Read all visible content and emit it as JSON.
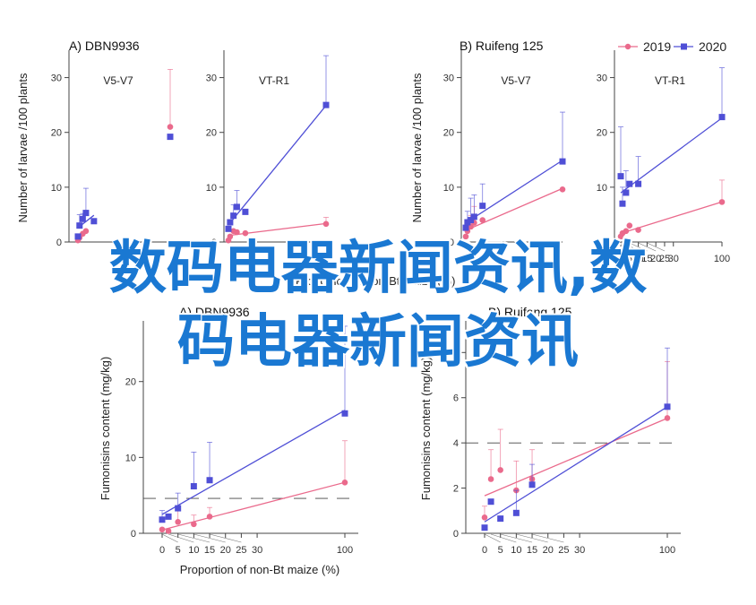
{
  "figure": {
    "legend": {
      "entries": [
        {
          "label": "2019",
          "color": "#ea6a8c",
          "marker": "circle"
        },
        {
          "label": "2020",
          "color": "#4f4fd6",
          "marker": "square"
        }
      ]
    },
    "watermark": {
      "line1": "数码电器新闻资讯,数",
      "line2": "码电器新闻资讯"
    }
  },
  "chart_data": [
    {
      "type": "line",
      "panel": "A) DBN9936",
      "subtitle": "V5-V7",
      "ylabel": "Number of larvae /100 plants",
      "xlabel": "Proportion of non-Bt maize (%)",
      "xlim": [
        0,
        100
      ],
      "ylim": [
        0,
        35
      ],
      "yticks": [
        0,
        10,
        20,
        30
      ],
      "series": [
        {
          "name": "2019",
          "x": [
            0,
            1,
            3,
            5
          ],
          "y": [
            0.3,
            0.8,
            1.5,
            2.0
          ]
        },
        {
          "name": "2019",
          "x": [
            100
          ],
          "y": [
            21
          ],
          "err": [
            10.5
          ]
        },
        {
          "name": "2020",
          "x": [
            0,
            1,
            3,
            5,
            10
          ],
          "y": [
            1.0,
            3.0,
            4.2,
            5.3,
            3.8
          ],
          "err": [
            0,
            2,
            1,
            4.5,
            0
          ]
        },
        {
          "name": "2020",
          "x": [
            100
          ],
          "y": [
            19.2
          ]
        }
      ]
    },
    {
      "type": "line",
      "panel": "",
      "subtitle": "VT-R1",
      "xlim": [
        0,
        100
      ],
      "ylim": [
        0,
        35
      ],
      "yticks": [
        0,
        10,
        20,
        30
      ],
      "series": [
        {
          "name": "2019",
          "x": [
            0,
            1,
            3,
            5,
            10,
            100
          ],
          "y": [
            0.3,
            1.0,
            2.0,
            1.8,
            1.6,
            3.3
          ],
          "err": [
            0,
            0,
            0,
            0,
            0,
            1.2
          ]
        },
        {
          "name": "2020",
          "x": [
            0,
            1,
            3,
            5,
            10,
            100
          ],
          "y": [
            2.4,
            3.6,
            4.8,
            6.4,
            5.5,
            25.0
          ],
          "err": [
            0,
            0,
            2,
            3,
            0,
            9
          ]
        }
      ]
    },
    {
      "type": "line",
      "panel": "B) Ruifeng 125",
      "subtitle": "V5-V7",
      "ylabel": "Number of larvae /100 plants",
      "xlim": [
        0,
        100
      ],
      "ylim": [
        0,
        35
      ],
      "yticks": [
        0,
        10,
        20,
        30
      ],
      "series": [
        {
          "name": "2019",
          "x": [
            0,
            1,
            3,
            5,
            10,
            100
          ],
          "y": [
            1.0,
            2.0,
            2.8,
            3.5,
            4.0,
            9.6
          ],
          "err": [
            0,
            0,
            2,
            3,
            0,
            0
          ]
        },
        {
          "name": "2020",
          "x": [
            0,
            1,
            3,
            5,
            10,
            100
          ],
          "y": [
            2.6,
            3.6,
            4.0,
            4.6,
            6.6,
            14.7
          ],
          "err": [
            0,
            2,
            4,
            4,
            4,
            9
          ]
        }
      ]
    },
    {
      "type": "line",
      "panel": "",
      "subtitle": "VT-R1",
      "xlabel": "Proportion of non-Bt maize (%)",
      "xlim": [
        0,
        100
      ],
      "ylim": [
        0,
        35
      ],
      "yticks": [
        0,
        10,
        20,
        30
      ],
      "xticks": [
        0,
        5,
        10,
        15,
        20,
        25,
        30,
        100
      ],
      "series": [
        {
          "name": "2019",
          "x": [
            0,
            1,
            3,
            5,
            10,
            100
          ],
          "y": [
            1.0,
            1.6,
            2.0,
            3.0,
            2.2,
            7.3
          ],
          "err": [
            0,
            0,
            0,
            0,
            0,
            4
          ]
        },
        {
          "name": "2020",
          "x": [
            0,
            1,
            3,
            5,
            10,
            100
          ],
          "y": [
            12.0,
            7.0,
            9.0,
            10.6,
            10.6,
            22.8
          ],
          "err": [
            9,
            3,
            4,
            0,
            5,
            9
          ]
        }
      ]
    },
    {
      "type": "line",
      "panel": "A) DBN9936",
      "ylabel": "Fumonisins content (mg/kg)",
      "xlabel": "Proportion of non-Bt maize (%)",
      "xlim": [
        0,
        100
      ],
      "ylim": [
        0,
        28
      ],
      "yticks": [
        0,
        10,
        20
      ],
      "xticks": [
        0,
        5,
        10,
        15,
        20,
        25,
        30,
        100
      ],
      "threshold": 4.6,
      "series": [
        {
          "name": "2019",
          "x": [
            0,
            2,
            5,
            10,
            15,
            100
          ],
          "y": [
            0.5,
            0.3,
            1.5,
            1.2,
            2.2,
            6.7
          ],
          "err": [
            0,
            0,
            1.5,
            1.2,
            1.2,
            5.5
          ]
        },
        {
          "name": "2020",
          "x": [
            0,
            2,
            5,
            10,
            15,
            100
          ],
          "y": [
            1.8,
            2.2,
            3.3,
            6.2,
            7.0,
            15.8
          ],
          "err": [
            1.2,
            0,
            2,
            4.5,
            5,
            11.5
          ]
        }
      ]
    },
    {
      "type": "line",
      "panel": "B) Ruifeng 125",
      "ylabel": "Fumonisins content (mg/kg)",
      "xlabel": "Proportion of non-Bt maize (%)",
      "xlim": [
        0,
        100
      ],
      "ylim": [
        0,
        9.4
      ],
      "yticks": [
        0,
        2,
        4,
        6,
        8
      ],
      "xticks": [
        0,
        5,
        10,
        15,
        20,
        25,
        30,
        100
      ],
      "threshold": 4,
      "series": [
        {
          "name": "2019",
          "x": [
            0,
            2,
            5,
            10,
            15,
            100
          ],
          "y": [
            0.7,
            2.4,
            2.8,
            1.9,
            2.4,
            5.1
          ],
          "err": [
            0.5,
            1.3,
            1.8,
            1.3,
            1.3,
            2.5
          ]
        },
        {
          "name": "2020",
          "x": [
            0,
            2,
            5,
            10,
            15,
            100
          ],
          "y": [
            0.25,
            1.4,
            0.65,
            0.9,
            2.15,
            5.6
          ],
          "err": [
            0,
            0,
            0,
            1,
            0.9,
            2.6
          ]
        }
      ]
    }
  ]
}
